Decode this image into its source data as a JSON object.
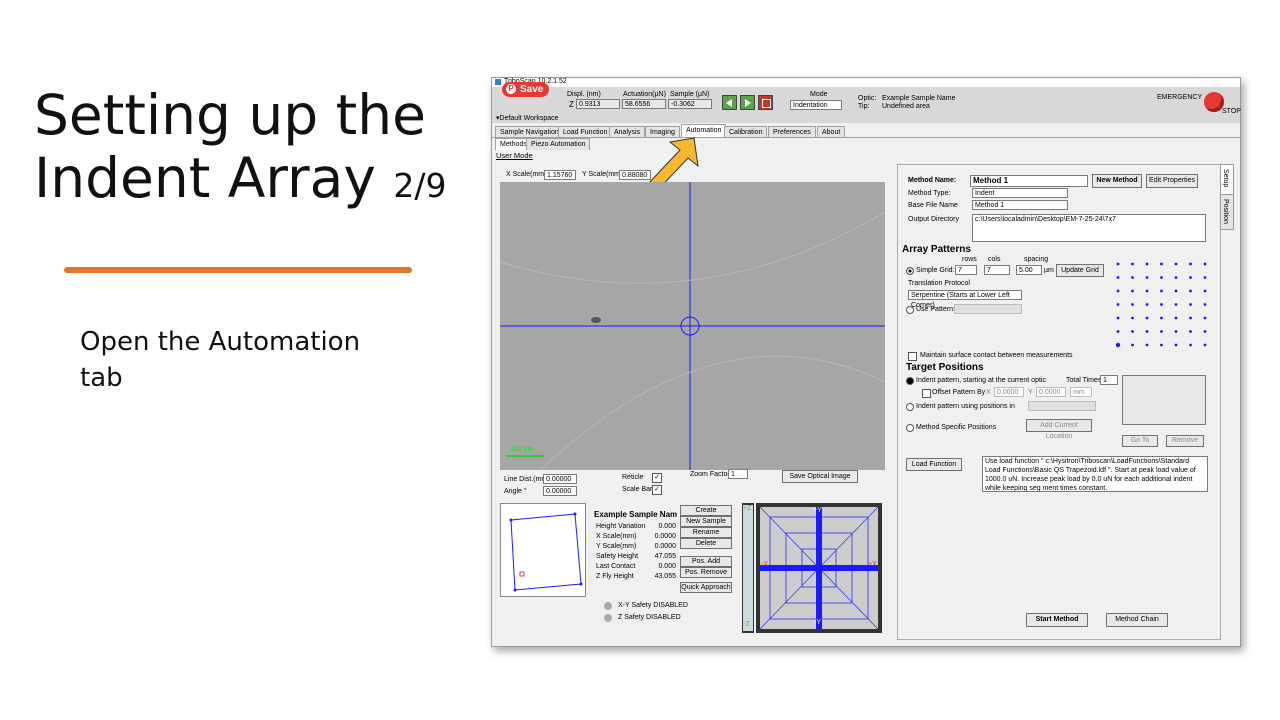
{
  "slide": {
    "title_line1": "Setting up the",
    "title_line2": "Indent Array",
    "title_page": "2/9",
    "instruction_line1": "Open the Automation",
    "instruction_line2": "tab"
  },
  "app": {
    "title": "TriboScan 10.2.1.52",
    "save_label": "Save",
    "workspace": "Default Workspace",
    "readouts": {
      "z_label": "Z",
      "displ_label": "Displ. (nm)",
      "displ_value": "0.9313",
      "actuation_label": "Actuation(µN)",
      "actuation_value": "58.6556",
      "sample_label": "Sample (µN)",
      "sample_value": "-0.3062"
    },
    "mode_label": "Mode",
    "mode_value": "Indentation",
    "optic_label": "Optic:",
    "optic_value": "Example Sample Name",
    "tip_label": "Tip:",
    "tip_value": "Undefined area",
    "emergency_label": "EMERGENCY",
    "stop_label": "STOP",
    "tabs": [
      "Sample Navigation",
      "Load Function",
      "Analysis",
      "Imaging",
      "Automation",
      "Calibration",
      "Preferences",
      "About"
    ],
    "subtabs": [
      "Methods",
      "Piezo Automation"
    ],
    "user_mode": "User Mode",
    "side_tabs": [
      "Setup",
      "Position"
    ]
  },
  "optical": {
    "x_scale_label": "X Scale(mm)",
    "x_scale_value": "1.15760",
    "y_scale_label": "Y Scale(mm)",
    "y_scale_value": "0.88080",
    "scale_bar_text": "100 µm",
    "line_dist_label": "Line Dist.(mm)",
    "line_dist_value": "0.00000",
    "angle_label": "Angle °",
    "angle_value": "0.00000",
    "reticle_label": "Reticle",
    "scalebar_label": "Scale Bar",
    "zoom_label": "Zoom Factor",
    "zoom_value": "1",
    "save_image_label": "Save Optical Image"
  },
  "sample": {
    "name": "Example Sample Nam",
    "rows": [
      {
        "label": "Height Variation",
        "value": "0.000"
      },
      {
        "label": "X Scale(mm)",
        "value": "0.0000"
      },
      {
        "label": "Y Scale(mm)",
        "value": "0.0000"
      },
      {
        "label": "Safety Height",
        "value": "47.055"
      },
      {
        "label": "Last Contact",
        "value": "0.000"
      },
      {
        "label": "Z Fly Height",
        "value": "43.055"
      }
    ],
    "buttons": [
      "Create Boundary",
      "New Sample",
      "Rename",
      "Delete",
      "Pos. Add",
      "Pos. Remove",
      "Quick Approach"
    ],
    "xy_safety": "X-Y Safety DISABLED",
    "z_safety": "Z  Safety DISABLED",
    "axis_labels": {
      "plus_z": "+Z",
      "minus_z": "-Z",
      "plus_y": "+Y",
      "minus_y": "-Y",
      "plus_x": "+X",
      "minus_x": "-X"
    }
  },
  "method": {
    "name_label": "Method Name:",
    "name_value": "Method 1",
    "new_method": "New Method",
    "edit_properties": "Edit Properties",
    "type_label": "Method Type:",
    "type_value": "Indent",
    "base_label": "Base File Name",
    "base_value": "Method 1",
    "output_label": "Output Directory",
    "output_value": "c:\\Users\\localadmin\\Desktop\\EM-7-25-24\\7x7",
    "array_title": "Array Patterns",
    "rows_label": "rows",
    "cols_label": "cols",
    "spacing_label": "spacing",
    "simple_grid_label": "Simple Grid:",
    "rows_value": "7",
    "cols_value": "7",
    "spacing_value": "5.00",
    "spacing_unit": "µm",
    "update_grid": "Update Grid",
    "translation_label": "Translation Protocol",
    "translation_value": "Serpentine (Starts at Lower Left Corner)",
    "use_pattern_label": "Use Pattern:",
    "maintain_label": "Maintain surface contact between measurements",
    "target_title": "Target Positions",
    "indent_current_label": "Indent pattern, starting at the current optic",
    "total_times_label": "Total Times",
    "total_times_value": "1",
    "offset_label": "Offset Pattern By",
    "offset_x_label": "X",
    "offset_x_value": "0.0000",
    "offset_y_label": "Y",
    "offset_y_value": "0.0000",
    "offset_unit": "mm",
    "indent_positions_label": "Indent pattern using positions in",
    "method_specific_label": "Method Specific Positions",
    "add_location": "Add Current Location",
    "go_to": "Go To",
    "remove": "Remove",
    "load_function_btn": "Load Function",
    "load_function_text": "Use load function \" c:\\Hysitron\\Triboscan\\LoadFunctions\\Standard Load Functions\\Basic QS Trapezoid.ldf \". Start at peak load value of 1000.0 uN. Increase peak load by 0.0 uN for each additional indent while keeping seg ment times constant.",
    "start_method": "Start Method",
    "method_chain": "Method Chain",
    "grid_rows": 7,
    "grid_cols": 7
  },
  "colors": {
    "accent_orange": "#e8742c",
    "arrow_yellow": "#f5b82e",
    "reticle_blue": "#1a1aff"
  }
}
